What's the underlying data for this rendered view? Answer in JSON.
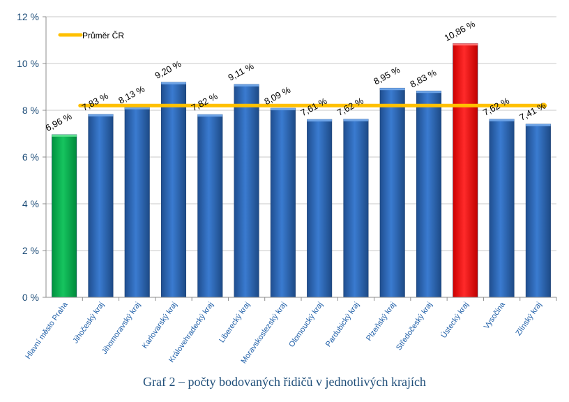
{
  "chart_data": {
    "type": "bar",
    "categories": [
      "Hlavní město Praha",
      "Jihočeský kraj",
      "Jihomoravský kraj",
      "Karlovarský kraj",
      "Královehradecký kraj",
      "Liberecký kraj",
      "Moravskoslezský kraj",
      "Olomoucký kraj",
      "Pardubický kraj",
      "Plzeňský kraj",
      "Středočeský kraj",
      "Ústecký kraj",
      "Vysočina",
      "Zlínský kraj"
    ],
    "values": [
      6.96,
      7.83,
      8.13,
      9.2,
      7.82,
      9.11,
      8.09,
      7.61,
      7.62,
      8.95,
      8.83,
      10.86,
      7.62,
      7.41
    ],
    "data_labels": [
      "6,96 %",
      "7,83 %",
      "8,13 %",
      "9,20 %",
      "7,82 %",
      "9,11 %",
      "8,09 %",
      "7,61 %",
      "7,62 %",
      "8,95 %",
      "8,83 %",
      "10,86 %",
      "7,62 %",
      "7,41 %"
    ],
    "bar_colors": [
      "#00b050",
      "#2e6bb8",
      "#2e6bb8",
      "#2e6bb8",
      "#2e6bb8",
      "#2e6bb8",
      "#2e6bb8",
      "#2e6bb8",
      "#2e6bb8",
      "#2e6bb8",
      "#2e6bb8",
      "#ff0000",
      "#2e6bb8",
      "#2e6bb8"
    ],
    "ylim": [
      0,
      12
    ],
    "y_ticks": [
      0,
      2,
      4,
      6,
      8,
      10,
      12
    ],
    "y_tick_labels": [
      "0 %",
      "2 %",
      "4 %",
      "6 %",
      "8 %",
      "10 %",
      "12 %"
    ],
    "average": {
      "name": "Průměr ČR",
      "value": 8.2,
      "color": "#ffc000"
    },
    "grid": true,
    "legend_position": "top-left"
  },
  "caption": "Graf 2 – počty bodovaných řidičů v jednotlivých krajích"
}
